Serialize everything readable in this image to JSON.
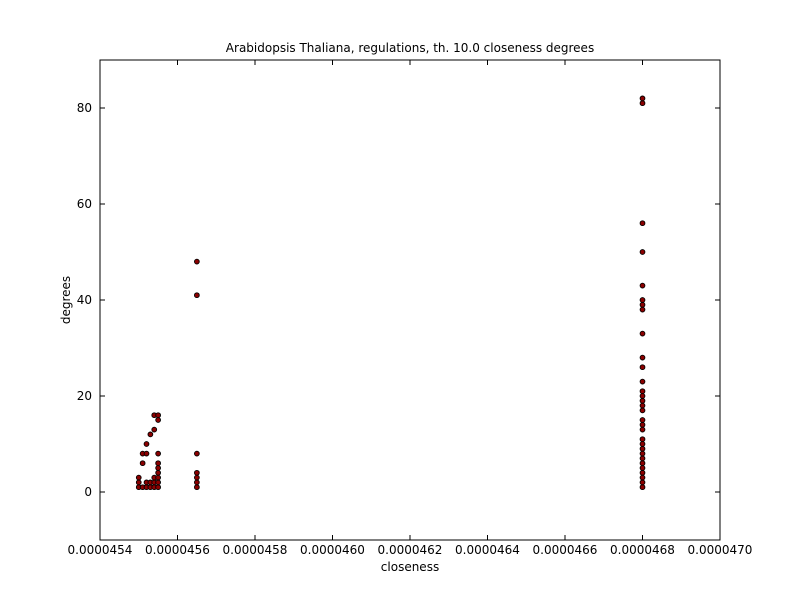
{
  "chart_data": {
    "type": "scatter",
    "title": "Arabidopsis Thaliana, regulations, th. 10.0 closeness degrees",
    "xlabel": "closeness",
    "ylabel": "degrees",
    "xlim": [
      4.54e-05,
      4.7e-05
    ],
    "ylim": [
      -10,
      90
    ],
    "xticks": [
      {
        "value": 4.54e-05,
        "label": "0.0000454"
      },
      {
        "value": 4.56e-05,
        "label": "0.0000456"
      },
      {
        "value": 4.58e-05,
        "label": "0.0000458"
      },
      {
        "value": 4.6e-05,
        "label": "0.0000460"
      },
      {
        "value": 4.62e-05,
        "label": "0.0000462"
      },
      {
        "value": 4.64e-05,
        "label": "0.0000464"
      },
      {
        "value": 4.66e-05,
        "label": "0.0000466"
      },
      {
        "value": 4.68e-05,
        "label": "0.0000468"
      },
      {
        "value": 4.7e-05,
        "label": "0.0000470"
      }
    ],
    "yticks": [
      {
        "value": 0,
        "label": "0"
      },
      {
        "value": 20,
        "label": "20"
      },
      {
        "value": 40,
        "label": "40"
      },
      {
        "value": 60,
        "label": "60"
      },
      {
        "value": 80,
        "label": "80"
      }
    ],
    "grid": false,
    "marker_color": "#8b0000",
    "marker_edge_color": "#000000",
    "points": [
      {
        "x": 4.55e-05,
        "y": 1
      },
      {
        "x": 4.55e-05,
        "y": 2
      },
      {
        "x": 4.55e-05,
        "y": 3
      },
      {
        "x": 4.551e-05,
        "y": 1
      },
      {
        "x": 4.551e-05,
        "y": 6
      },
      {
        "x": 4.551e-05,
        "y": 8
      },
      {
        "x": 4.552e-05,
        "y": 1
      },
      {
        "x": 4.552e-05,
        "y": 2
      },
      {
        "x": 4.552e-05,
        "y": 8
      },
      {
        "x": 4.552e-05,
        "y": 10
      },
      {
        "x": 4.553e-05,
        "y": 1
      },
      {
        "x": 4.553e-05,
        "y": 2
      },
      {
        "x": 4.553e-05,
        "y": 12
      },
      {
        "x": 4.554e-05,
        "y": 1
      },
      {
        "x": 4.554e-05,
        "y": 2
      },
      {
        "x": 4.554e-05,
        "y": 3
      },
      {
        "x": 4.554e-05,
        "y": 13
      },
      {
        "x": 4.554e-05,
        "y": 16
      },
      {
        "x": 4.555e-05,
        "y": 1
      },
      {
        "x": 4.555e-05,
        "y": 2
      },
      {
        "x": 4.555e-05,
        "y": 3
      },
      {
        "x": 4.555e-05,
        "y": 4
      },
      {
        "x": 4.555e-05,
        "y": 5
      },
      {
        "x": 4.555e-05,
        "y": 6
      },
      {
        "x": 4.555e-05,
        "y": 8
      },
      {
        "x": 4.555e-05,
        "y": 15
      },
      {
        "x": 4.555e-05,
        "y": 16
      },
      {
        "x": 4.565e-05,
        "y": 1
      },
      {
        "x": 4.565e-05,
        "y": 2
      },
      {
        "x": 4.565e-05,
        "y": 3
      },
      {
        "x": 4.565e-05,
        "y": 4
      },
      {
        "x": 4.565e-05,
        "y": 8
      },
      {
        "x": 4.565e-05,
        "y": 41
      },
      {
        "x": 4.565e-05,
        "y": 48
      },
      {
        "x": 4.68e-05,
        "y": 1
      },
      {
        "x": 4.68e-05,
        "y": 2
      },
      {
        "x": 4.68e-05,
        "y": 3
      },
      {
        "x": 4.68e-05,
        "y": 4
      },
      {
        "x": 4.68e-05,
        "y": 5
      },
      {
        "x": 4.68e-05,
        "y": 6
      },
      {
        "x": 4.68e-05,
        "y": 7
      },
      {
        "x": 4.68e-05,
        "y": 8
      },
      {
        "x": 4.68e-05,
        "y": 9
      },
      {
        "x": 4.68e-05,
        "y": 10
      },
      {
        "x": 4.68e-05,
        "y": 11
      },
      {
        "x": 4.68e-05,
        "y": 13
      },
      {
        "x": 4.68e-05,
        "y": 14
      },
      {
        "x": 4.68e-05,
        "y": 15
      },
      {
        "x": 4.68e-05,
        "y": 17
      },
      {
        "x": 4.68e-05,
        "y": 18
      },
      {
        "x": 4.68e-05,
        "y": 19
      },
      {
        "x": 4.68e-05,
        "y": 20
      },
      {
        "x": 4.68e-05,
        "y": 21
      },
      {
        "x": 4.68e-05,
        "y": 23
      },
      {
        "x": 4.68e-05,
        "y": 26
      },
      {
        "x": 4.68e-05,
        "y": 28
      },
      {
        "x": 4.68e-05,
        "y": 33
      },
      {
        "x": 4.68e-05,
        "y": 38
      },
      {
        "x": 4.68e-05,
        "y": 39
      },
      {
        "x": 4.68e-05,
        "y": 40
      },
      {
        "x": 4.68e-05,
        "y": 43
      },
      {
        "x": 4.68e-05,
        "y": 50
      },
      {
        "x": 4.68e-05,
        "y": 56
      },
      {
        "x": 4.68e-05,
        "y": 81
      },
      {
        "x": 4.68e-05,
        "y": 82
      }
    ]
  }
}
